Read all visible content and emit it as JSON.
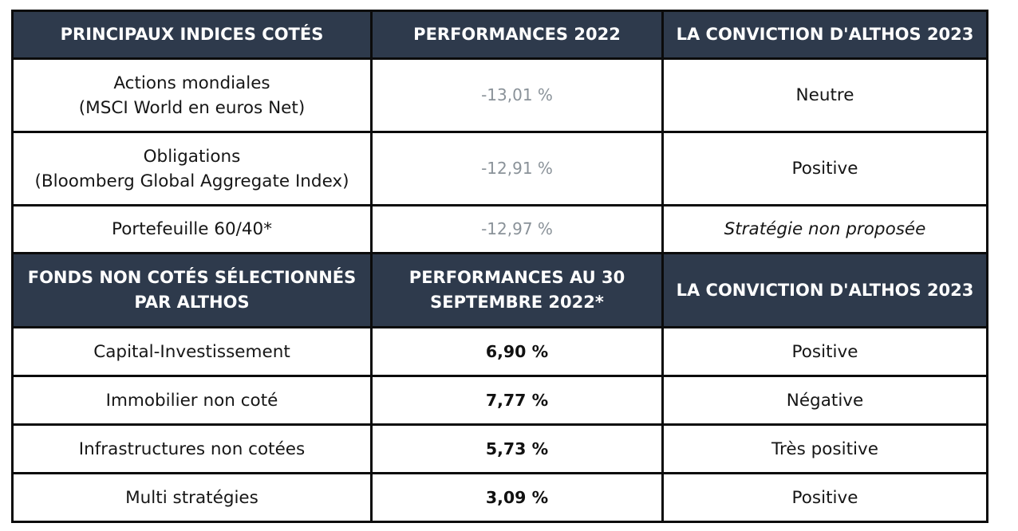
{
  "section1": {
    "headers": [
      "PRINCIPAUX INDICES COTÉS",
      "PERFORMANCES  2022",
      "LA CONVICTION D'ALTHOS 2023"
    ],
    "rows": [
      {
        "name_line1": "Actions mondiales",
        "name_line2": "(MSCI World en euros Net)",
        "performance": "-13,01 %",
        "conviction": "Neutre"
      },
      {
        "name_line1": "Obligations",
        "name_line2": "(Bloomberg Global Aggregate Index)",
        "performance": "-12,91 %",
        "conviction": "Positive"
      },
      {
        "name_line1": "Portefeuille 60/40*",
        "name_line2": "",
        "performance": "-12,97 %",
        "conviction": "Stratégie non proposée"
      }
    ]
  },
  "section2": {
    "headers": [
      {
        "line1": "FONDS NON COTÉS SÉLECTIONNÉS",
        "line2": "PAR ALTHOS"
      },
      {
        "line1": "PERFORMANCES AU 30",
        "line2": "SEPTEMBRE 2022*"
      },
      {
        "line1": "LA CONVICTION D'ALTHOS 2023",
        "line2": ""
      }
    ],
    "rows": [
      {
        "name": "Capital-Investissement",
        "performance": "6,90 %",
        "conviction": "Positive"
      },
      {
        "name": "Immobilier non coté",
        "performance": "7,77 %",
        "conviction": "Négative"
      },
      {
        "name": "Infrastructures non cotées",
        "performance": "5,73 %",
        "conviction": "Très positive"
      },
      {
        "name": "Multi stratégies",
        "performance": "3,09 %",
        "conviction": "Positive"
      }
    ]
  },
  "colors": {
    "header_bg": "#2e3a4c",
    "header_text": "#ffffff",
    "border": "#0b0b0b",
    "muted_performance": "#8a9299"
  }
}
